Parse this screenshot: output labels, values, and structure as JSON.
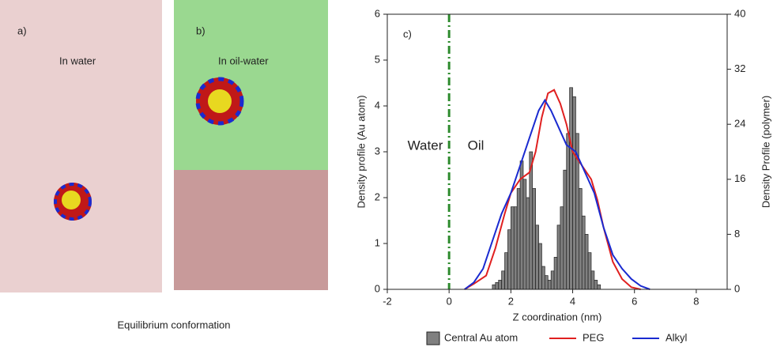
{
  "panels": [
    {
      "label": "a)",
      "caption": "In water"
    },
    {
      "label": "b)",
      "caption": "In oil-water"
    }
  ],
  "caption": "Equilibrium conformation",
  "chart_data": {
    "type": "histogram",
    "annotations": [
      "c)",
      "Water",
      "Oil"
    ],
    "xlabel": "Z coordination (nm)",
    "ylabel": "Density profile (Au atom)",
    "y2label": "Density Profile (polymer)",
    "xlim": [
      -2,
      9
    ],
    "xticks": [
      -2,
      0,
      2,
      4,
      6,
      8
    ],
    "ylim": [
      0,
      6
    ],
    "yticks": [
      0,
      1,
      2,
      3,
      4,
      5,
      6
    ],
    "y2lim": [
      0,
      40
    ],
    "y2ticks": [
      0,
      8,
      16,
      24,
      32,
      40
    ],
    "vline": 0,
    "vline_color": "#2e8b2e",
    "name": "Central Au atom",
    "color": "#808080",
    "bins": [
      1.4,
      1.5,
      1.6,
      1.7,
      1.8,
      1.9,
      2.0,
      2.1,
      2.2,
      2.3,
      2.4,
      2.5,
      2.6,
      2.7,
      2.8,
      2.9,
      3.0,
      3.1,
      3.2,
      3.3,
      3.4,
      3.5,
      3.6,
      3.7,
      3.8,
      3.9,
      4.0,
      4.1,
      4.2,
      4.3,
      4.4,
      4.5,
      4.6,
      4.7,
      4.8,
      4.9
    ],
    "values": [
      0.1,
      0.15,
      0.2,
      0.4,
      0.8,
      1.3,
      1.8,
      1.8,
      2.2,
      2.8,
      2.4,
      2.0,
      3.0,
      2.2,
      1.4,
      1.0,
      0.5,
      0.3,
      0.2,
      0.4,
      0.7,
      1.4,
      1.8,
      2.6,
      3.4,
      4.4,
      4.2,
      3.4,
      2.2,
      1.6,
      1.2,
      0.8,
      0.4,
      0.2,
      0.1
    ],
    "series": [
      {
        "name": "PEG",
        "color": "#e02020",
        "axis": "y2",
        "x": [
          0.5,
          0.8,
          1.2,
          1.5,
          1.8,
          2.0,
          2.3,
          2.6,
          2.8,
          3.0,
          3.2,
          3.4,
          3.6,
          3.8,
          4.0,
          4.3,
          4.6,
          4.8,
          5.0,
          5.3,
          5.6,
          5.9,
          6.2
        ],
        "values": [
          0,
          0.8,
          2,
          6,
          11,
          14,
          16,
          17,
          20,
          25,
          28.5,
          29,
          27,
          24,
          20,
          18,
          16,
          13,
          9,
          4,
          1.5,
          0.3,
          0
        ]
      },
      {
        "name": "Alkyl",
        "color": "#1a2ad0",
        "axis": "y2",
        "x": [
          0.5,
          0.8,
          1.1,
          1.4,
          1.7,
          2.0,
          2.3,
          2.6,
          2.9,
          3.1,
          3.3,
          3.5,
          3.8,
          4.1,
          4.4,
          4.7,
          5.0,
          5.3,
          5.6,
          5.9,
          6.2,
          6.5
        ],
        "values": [
          0,
          1,
          3,
          7,
          11,
          14,
          18,
          22,
          26,
          27.5,
          26,
          24,
          21,
          20,
          17,
          14,
          9,
          5,
          3,
          1.5,
          0.5,
          0
        ]
      }
    ],
    "legend": "bottom"
  }
}
